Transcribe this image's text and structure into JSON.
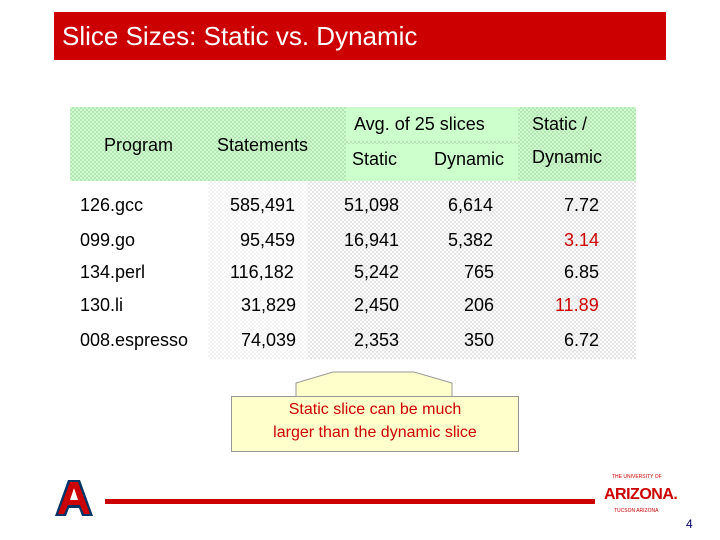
{
  "title": "Slice Sizes: Static vs. Dynamic",
  "table": {
    "headers": {
      "program": "Program",
      "statements": "Statements",
      "avg_group": "Avg. of 25 slices",
      "static": "Static",
      "dynamic": "Dynamic",
      "ratio_line1": "Static /",
      "ratio_line2": "Dynamic"
    },
    "rows": [
      {
        "program": "126.gcc",
        "statements": "585,491",
        "static": "51,098",
        "dynamic": "6,614",
        "ratio": "7.72",
        "ratio_highlight": false
      },
      {
        "program": "099.go",
        "statements": "95,459",
        "static": "16,941",
        "dynamic": "5,382",
        "ratio": "3.14",
        "ratio_highlight": true
      },
      {
        "program": "134.perl",
        "statements": "116,182",
        "static": "5,242",
        "dynamic": "765",
        "ratio": "6.85",
        "ratio_highlight": false
      },
      {
        "program": "130.li",
        "statements": "31,829",
        "static": "2,450",
        "dynamic": "206",
        "ratio": "11.89",
        "ratio_highlight": true
      },
      {
        "program": "008.espresso",
        "statements": "74,039",
        "static": "2,353",
        "dynamic": "350",
        "ratio": "6.72",
        "ratio_highlight": false
      }
    ]
  },
  "callout": {
    "line1": "Static slice can be much",
    "line2": "larger than the dynamic slice"
  },
  "footer": {
    "logo_letter": "A",
    "university_small": "THE UNIVERSITY OF",
    "university_name": "ARIZONA.",
    "university_city": "TUCSON ARIZONA",
    "page_number": "4"
  },
  "colors": {
    "accent_red": "#cc0000",
    "header_green": "#ccffcc",
    "callout_yellow": "#ffffcc",
    "logo_navy": "#003366"
  }
}
